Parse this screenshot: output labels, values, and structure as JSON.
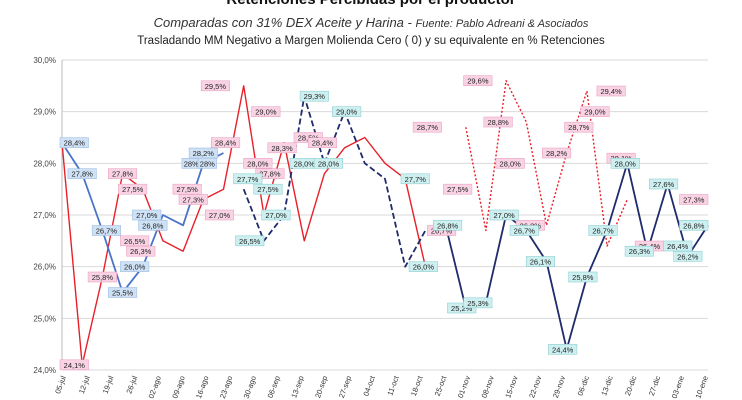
{
  "title": "Retenciones  Percibidas por el productor",
  "subtitle": "Comparadas con 31% DEX  Aceite y Harina -",
  "source": "Fuente: Pablo Adreani & Asociados",
  "note": "Trasladando  MM Negativo  a  Margen Molienda Cero ( 0)  y su equivalente en %  Retenciones",
  "colors": {
    "red": "#e8202a",
    "blue": "#4a74c9",
    "navy": "#1f2b6b",
    "pink_label_bg": "#f9d3e4",
    "blue_label_bg": "#cfe1f5",
    "cyan_label_bg": "#cdeff0",
    "grid": "#d9d9d9"
  },
  "chart_data": {
    "type": "line",
    "ylim": [
      24.0,
      30.0
    ],
    "yticks": [
      "24,0%",
      "25,0%",
      "26,0%",
      "27,0%",
      "28,0%",
      "29,0%",
      "30,0%"
    ],
    "xticks": [
      "05-jul",
      "12-jul",
      "19-jul",
      "26-jul",
      "02-ago",
      "09-ago",
      "16-ago",
      "23-ago",
      "30-ago",
      "06-sep",
      "13-sep",
      "20-sep",
      "27-sep",
      "04-oct",
      "11-oct",
      "18-oct",
      "25-oct",
      "01-nov",
      "08-nov",
      "15-nov",
      "22-nov",
      "29-nov",
      "06-dic",
      "13-dic",
      "20-dic",
      "27-dic",
      "03-ene",
      "10-ene"
    ],
    "grid": true,
    "series": [
      {
        "color": "red",
        "points": [
          [
            0,
            28.4
          ],
          [
            1,
            24.1
          ],
          [
            2,
            25.8
          ],
          [
            3,
            27.8
          ],
          [
            4,
            27.5
          ],
          [
            5,
            26.5
          ],
          [
            6,
            26.3
          ],
          [
            7,
            27.3
          ],
          [
            8,
            27.5
          ],
          [
            9,
            29.5
          ],
          [
            10,
            27.0
          ],
          [
            11,
            28.4
          ],
          [
            12,
            26.5
          ],
          [
            13,
            27.8
          ],
          [
            14,
            28.3
          ],
          [
            15,
            28.5
          ],
          [
            16,
            28.0
          ],
          [
            17,
            27.7
          ],
          [
            18,
            26.0
          ]
        ]
      },
      {
        "color": "red",
        "dashed": true,
        "points": [
          [
            20,
            28.7
          ],
          [
            21,
            26.7
          ],
          [
            22,
            29.6
          ],
          [
            23,
            28.8
          ],
          [
            24,
            26.8
          ],
          [
            25,
            28.2
          ],
          [
            26,
            29.4
          ],
          [
            27,
            26.4
          ],
          [
            28,
            27.3
          ]
        ]
      },
      {
        "color": "blue",
        "points": [
          [
            0,
            28.4
          ],
          [
            1,
            27.8
          ],
          [
            2,
            26.7
          ],
          [
            3,
            25.5
          ],
          [
            4,
            26.0
          ],
          [
            5,
            27.0
          ],
          [
            6,
            26.8
          ],
          [
            7,
            28.0
          ],
          [
            8,
            28.2
          ]
        ]
      },
      {
        "color": "navy",
        "dashed": true,
        "points": [
          [
            9,
            27.5
          ],
          [
            10,
            26.5
          ],
          [
            11,
            27.0
          ],
          [
            12,
            29.3
          ],
          [
            13,
            28.0
          ],
          [
            14,
            29.0
          ],
          [
            15,
            28.0
          ],
          [
            16,
            27.7
          ],
          [
            17,
            26.0
          ],
          [
            18,
            26.7
          ]
        ]
      },
      {
        "color": "navy",
        "points": [
          [
            19,
            26.8
          ],
          [
            20,
            25.2
          ],
          [
            21,
            25.3
          ],
          [
            22,
            27.0
          ],
          [
            23,
            26.7
          ],
          [
            24,
            26.1
          ],
          [
            25,
            24.4
          ],
          [
            26,
            25.8
          ],
          [
            27,
            26.7
          ],
          [
            28,
            28.0
          ],
          [
            29,
            26.3
          ],
          [
            30,
            27.6
          ],
          [
            31,
            26.2
          ],
          [
            32,
            26.8
          ]
        ]
      }
    ],
    "data_labels": [
      {
        "text": "24,1%",
        "style": "pink"
      },
      {
        "text": "25,8%",
        "style": "pink"
      },
      {
        "text": "27,8%",
        "style": "pink"
      },
      {
        "text": "27,5%",
        "style": "pink"
      },
      {
        "text": "26,5%",
        "style": "pink"
      },
      {
        "text": "26,3%",
        "style": "pink"
      },
      {
        "text": "27,5%",
        "style": "pink"
      },
      {
        "text": "27,3%",
        "style": "pink"
      },
      {
        "text": "29,5%",
        "style": "pink"
      },
      {
        "text": "27,0%",
        "style": "pink"
      },
      {
        "text": "28,4%",
        "style": "pink"
      },
      {
        "text": "29,0%",
        "style": "pink"
      },
      {
        "text": "28,0%",
        "style": "pink"
      },
      {
        "text": "27,8%",
        "style": "pink"
      },
      {
        "text": "28,3%",
        "style": "pink"
      },
      {
        "text": "28,5%",
        "style": "pink"
      },
      {
        "text": "28,4%",
        "style": "pink"
      },
      {
        "text": "28,7%",
        "style": "pink"
      },
      {
        "text": "26,7%",
        "style": "pink"
      },
      {
        "text": "27,5%",
        "style": "pink"
      },
      {
        "text": "29,6%",
        "style": "pink"
      },
      {
        "text": "28,8%",
        "style": "pink"
      },
      {
        "text": "28,0%",
        "style": "pink"
      },
      {
        "text": "26,8%",
        "style": "pink"
      },
      {
        "text": "28,2%",
        "style": "pink"
      },
      {
        "text": "28,7%",
        "style": "pink"
      },
      {
        "text": "29,0%",
        "style": "pink"
      },
      {
        "text": "29,4%",
        "style": "pink"
      },
      {
        "text": "28,1%",
        "style": "pink"
      },
      {
        "text": "26,4%",
        "style": "pink"
      },
      {
        "text": "27,3%",
        "style": "pink"
      },
      {
        "text": "28,4%",
        "style": "blue"
      },
      {
        "text": "27,8%",
        "style": "blue"
      },
      {
        "text": "26,7%",
        "style": "blue"
      },
      {
        "text": "25,5%",
        "style": "blue"
      },
      {
        "text": "26,0%",
        "style": "blue"
      },
      {
        "text": "27,0%",
        "style": "blue"
      },
      {
        "text": "26,8%",
        "style": "blue"
      },
      {
        "text": "28%",
        "style": "blue"
      },
      {
        "text": "28,2%",
        "style": "blue"
      },
      {
        "text": "28%",
        "style": "blue"
      },
      {
        "text": "27,7%",
        "style": "cyan"
      },
      {
        "text": "27,5%",
        "style": "cyan"
      },
      {
        "text": "26,5%",
        "style": "cyan"
      },
      {
        "text": "27,0%",
        "style": "cyan"
      },
      {
        "text": "29,3%",
        "style": "cyan"
      },
      {
        "text": "28,0%",
        "style": "cyan"
      },
      {
        "text": "28,0%",
        "style": "cyan"
      },
      {
        "text": "29,0%",
        "style": "cyan"
      },
      {
        "text": "27,7%",
        "style": "cyan"
      },
      {
        "text": "26,0%",
        "style": "cyan"
      },
      {
        "text": "26,8%",
        "style": "cyan"
      },
      {
        "text": "25,2%",
        "style": "cyan"
      },
      {
        "text": "25,3%",
        "style": "cyan"
      },
      {
        "text": "27,0%",
        "style": "cyan"
      },
      {
        "text": "26,7%",
        "style": "cyan"
      },
      {
        "text": "26,1%",
        "style": "cyan"
      },
      {
        "text": "24,4%",
        "style": "cyan"
      },
      {
        "text": "25,8%",
        "style": "cyan"
      },
      {
        "text": "26,7%",
        "style": "cyan"
      },
      {
        "text": "28,0%",
        "style": "cyan"
      },
      {
        "text": "26,3%",
        "style": "cyan"
      },
      {
        "text": "27,6%",
        "style": "cyan"
      },
      {
        "text": "26,2%",
        "style": "cyan"
      },
      {
        "text": "26,4%",
        "style": "cyan"
      },
      {
        "text": "26,8%",
        "style": "cyan"
      }
    ]
  }
}
